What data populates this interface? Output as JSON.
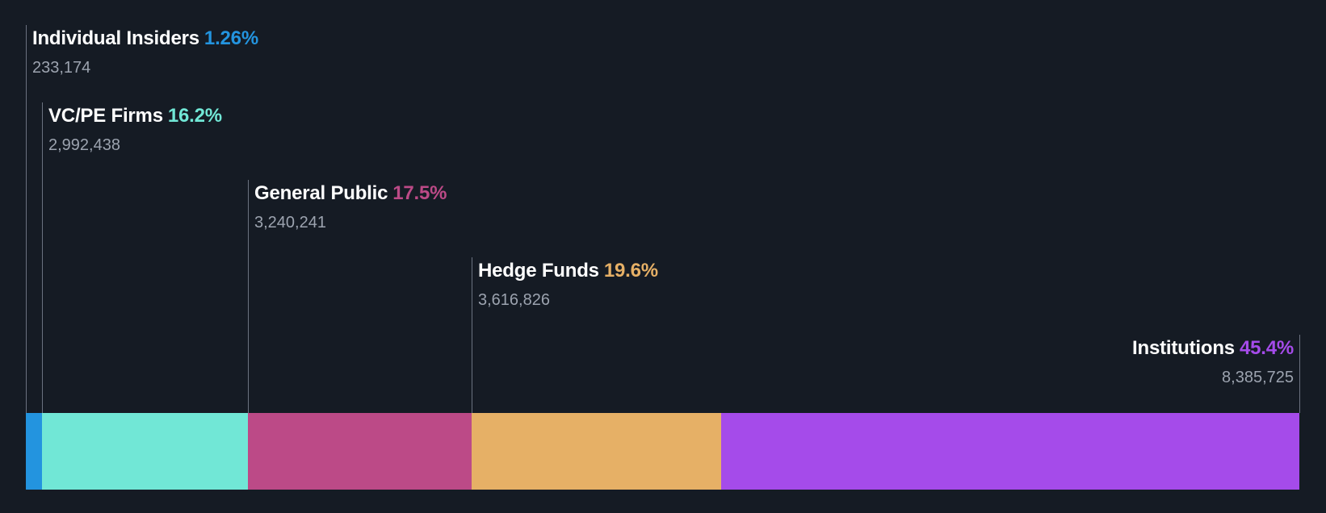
{
  "chart_data": {
    "type": "stacked-bar",
    "title": "",
    "segments": [
      {
        "name": "Individual Insiders",
        "percent_label": "1.26%",
        "percent": 1.26,
        "shares_label": "233,174",
        "shares": 233174,
        "color": "#2394df"
      },
      {
        "name": "VC/PE Firms",
        "percent_label": "16.2%",
        "percent": 16.2,
        "shares_label": "2,992,438",
        "shares": 2992438,
        "color": "#71e7d6"
      },
      {
        "name": "General Public",
        "percent_label": "17.5%",
        "percent": 17.5,
        "shares_label": "3,240,241",
        "shares": 3240241,
        "color": "#bc4a87"
      },
      {
        "name": "Hedge Funds",
        "percent_label": "19.6%",
        "percent": 19.6,
        "shares_label": "3,616,826",
        "shares": 3616826,
        "color": "#e6b066"
      },
      {
        "name": "Institutions",
        "percent_label": "45.4%",
        "percent": 45.4,
        "shares_label": "8,385,725",
        "shares": 8385725,
        "color": "#a54bea"
      }
    ]
  }
}
